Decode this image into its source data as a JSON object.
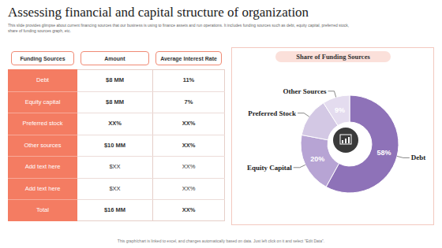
{
  "title": "Assessing financial and capital structure of organization",
  "subtitle": "This slide provides glimpse about current financing sources that our business is using to finance assets and run operations. It includes funding sources such as debt, equity capital, preferred stock, share of funding sources graph, etc.",
  "table": {
    "header": [
      "Funding Sources",
      "Amount",
      "Average Interest Rate"
    ],
    "rows": [
      [
        "Debt",
        "$8 MM",
        "11%"
      ],
      [
        "Equity capital",
        "$8 MM",
        "7%"
      ],
      [
        "Preferred stock",
        "XX%",
        "XX%"
      ],
      [
        "Other sources",
        "$10 MM",
        "XX%"
      ],
      [
        "Add text here",
        "$XX",
        "XX%"
      ],
      [
        "Add text here",
        "$XX",
        "XX%"
      ],
      [
        "Total",
        "$16 MM",
        "XX%"
      ]
    ]
  },
  "chart_data": {
    "type": "pie",
    "title": "Share of Funding Sources",
    "categories": [
      "Debt",
      "Equity Capital",
      "Preferred Stock",
      "Other Sources"
    ],
    "values": [
      58,
      20,
      13,
      9
    ],
    "value_labels": [
      "58%",
      "20%",
      null,
      "9%"
    ],
    "colors": [
      "#8e72b8",
      "#b7a4d4",
      "#d3c8e4",
      "#e4dcef"
    ],
    "data_labels": true
  },
  "footnote": "This graph/chart is linked to excel, and changes automatically based on data. Just left click on it and select \"Edit Data\"."
}
